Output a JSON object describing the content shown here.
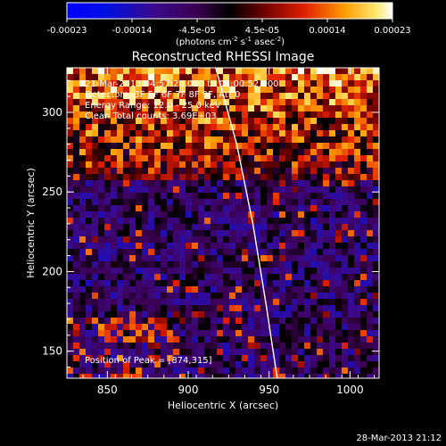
{
  "colorbar": {
    "tick_labels": [
      "-0.00023",
      "-0.00014",
      "-4.5e-05",
      "4.5e-05",
      "0.00014",
      "0.00023"
    ],
    "units_main": "(photons cm",
    "units_exp1": "-2",
    "units_mid": " s",
    "units_exp2": "-1",
    "units_tail": " asec",
    "units_exp3": "-2",
    "units_close": ")"
  },
  "chart_data": {
    "type": "heatmap",
    "title": "Reconstructed RHESSI Image",
    "xlabel": "Heliocentric X (arcsec)",
    "ylabel": "Heliocentric Y (arcsec)",
    "xlim": [
      825,
      1018
    ],
    "ylim": [
      133,
      328
    ],
    "x_ticks": [
      850,
      900,
      950,
      1000
    ],
    "y_ticks": [
      150,
      200,
      250,
      300
    ],
    "value_range": [
      -0.00023,
      0.00023
    ],
    "peak_position": [
      874,
      315
    ],
    "annotations": [
      "21-Mar-2013 04:57:20.000 to 05:00:52.000",
      "Detectors: 3F 5F 6F 7F 8F 9F, Att 0",
      "Energy Range: 12.0 - 25.0 keV",
      "Clean    Total counts: 3.69E+03"
    ],
    "peak_label": "Position of Peak = [874,315]",
    "limb_curve": [
      [
        917,
        328
      ],
      [
        930,
        280
      ],
      [
        940,
        230
      ],
      [
        948,
        180
      ],
      [
        955,
        133
      ]
    ]
  },
  "footer": {
    "timestamp": "28-Mar-2013 21:12"
  }
}
